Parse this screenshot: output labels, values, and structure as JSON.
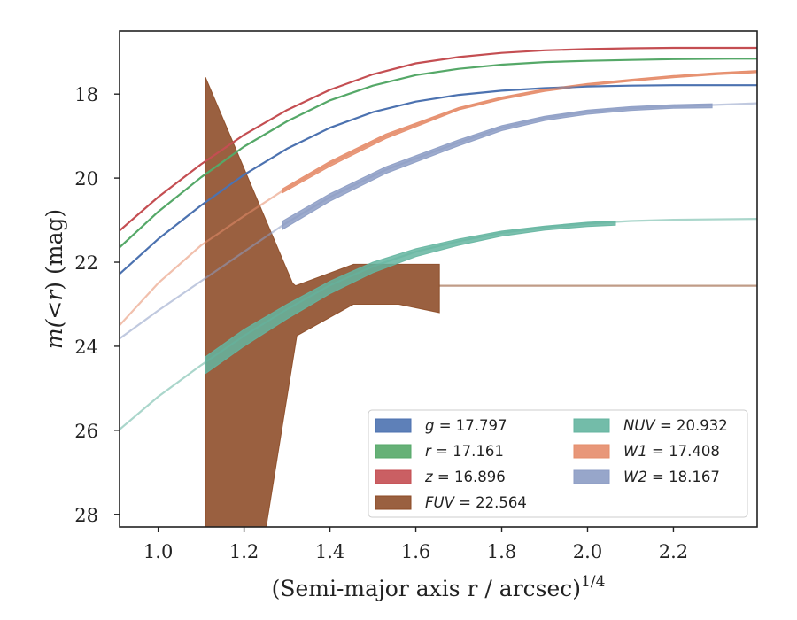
{
  "chart_data": {
    "type": "line",
    "xlabel": "(Semi-major axis r / arcsec)",
    "xlabel_sup": "1/4",
    "ylabel_parts": [
      "m(",
      "<",
      "r",
      ") (mag)"
    ],
    "xlim": [
      0.91,
      2.395
    ],
    "ylim": [
      28.3,
      16.5
    ],
    "y_inverted": true,
    "xticks": [
      1.0,
      1.2,
      1.4,
      1.6,
      1.8,
      2.0,
      2.2
    ],
    "xtick_labels": [
      "1.0",
      "1.2",
      "1.4",
      "1.6",
      "1.8",
      "2.0",
      "2.2"
    ],
    "yticks": [
      18,
      20,
      22,
      24,
      26,
      28
    ],
    "ytick_labels": [
      "18",
      "20",
      "22",
      "24",
      "26",
      "28"
    ],
    "grid": false,
    "legend_position": "lower-right",
    "series": [
      {
        "name": "g",
        "legend_value": "= 17.797",
        "color": "#4c72b0",
        "line": [
          [
            0.91,
            22.28
          ],
          [
            1.0,
            21.45
          ],
          [
            1.1,
            20.65
          ],
          [
            1.2,
            19.92
          ],
          [
            1.3,
            19.3
          ],
          [
            1.4,
            18.8
          ],
          [
            1.5,
            18.43
          ],
          [
            1.6,
            18.18
          ],
          [
            1.7,
            18.02
          ],
          [
            1.8,
            17.92
          ],
          [
            1.9,
            17.86
          ],
          [
            2.0,
            17.82
          ],
          [
            2.1,
            17.8
          ],
          [
            2.2,
            17.79
          ],
          [
            2.395,
            17.79
          ]
        ]
      },
      {
        "name": "r",
        "legend_value": "= 17.161",
        "color": "#55a868",
        "line": [
          [
            0.91,
            21.65
          ],
          [
            1.0,
            20.8
          ],
          [
            1.1,
            19.98
          ],
          [
            1.2,
            19.25
          ],
          [
            1.3,
            18.65
          ],
          [
            1.4,
            18.15
          ],
          [
            1.5,
            17.8
          ],
          [
            1.6,
            17.55
          ],
          [
            1.7,
            17.4
          ],
          [
            1.8,
            17.3
          ],
          [
            1.9,
            17.24
          ],
          [
            2.0,
            17.21
          ],
          [
            2.1,
            17.19
          ],
          [
            2.2,
            17.17
          ],
          [
            2.33,
            17.16
          ],
          [
            2.395,
            17.16
          ]
        ]
      },
      {
        "name": "z",
        "legend_value": "= 16.896",
        "color": "#c44e52",
        "line": [
          [
            0.91,
            21.25
          ],
          [
            1.0,
            20.45
          ],
          [
            1.1,
            19.67
          ],
          [
            1.2,
            18.97
          ],
          [
            1.3,
            18.38
          ],
          [
            1.4,
            17.9
          ],
          [
            1.5,
            17.53
          ],
          [
            1.6,
            17.27
          ],
          [
            1.7,
            17.12
          ],
          [
            1.8,
            17.02
          ],
          [
            1.9,
            16.96
          ],
          [
            2.0,
            16.93
          ],
          [
            2.1,
            16.91
          ],
          [
            2.2,
            16.9
          ],
          [
            2.395,
            16.9
          ]
        ]
      },
      {
        "name": "FUV",
        "legend_value": "= 22.564",
        "color": "#8c4a25",
        "line": [
          [
            1.655,
            22.56
          ],
          [
            2.395,
            22.56
          ]
        ],
        "band_upper": [
          [
            1.11,
            17.6
          ],
          [
            1.313,
            22.5
          ],
          [
            1.32,
            22.56
          ],
          [
            1.455,
            22.05
          ],
          [
            1.655,
            22.05
          ]
        ],
        "band_lower": [
          [
            1.11,
            28.4
          ],
          [
            1.25,
            28.4
          ],
          [
            1.323,
            23.75
          ],
          [
            1.455,
            23.0
          ],
          [
            1.56,
            23.0
          ],
          [
            1.655,
            23.2
          ]
        ]
      },
      {
        "name": "NUV",
        "legend_value": "= 20.932",
        "color": "#64b5a0",
        "line": [
          [
            0.91,
            25.98
          ],
          [
            1.0,
            25.2
          ],
          [
            1.1,
            24.45
          ],
          [
            1.2,
            23.75
          ],
          [
            1.3,
            23.12
          ],
          [
            1.4,
            22.55
          ],
          [
            1.5,
            22.1
          ],
          [
            1.6,
            21.75
          ],
          [
            1.7,
            21.5
          ],
          [
            1.8,
            21.3
          ],
          [
            1.9,
            21.17
          ],
          [
            2.0,
            21.08
          ],
          [
            2.1,
            21.02
          ],
          [
            2.2,
            20.99
          ],
          [
            2.395,
            20.97
          ]
        ],
        "band_upper": [
          [
            1.11,
            24.25
          ],
          [
            1.2,
            23.6
          ],
          [
            1.3,
            23.0
          ],
          [
            1.4,
            22.45
          ],
          [
            1.5,
            22.0
          ],
          [
            1.6,
            21.68
          ],
          [
            1.7,
            21.45
          ],
          [
            1.8,
            21.26
          ],
          [
            1.9,
            21.14
          ],
          [
            2.0,
            21.05
          ],
          [
            2.065,
            21.02
          ]
        ],
        "band_lower": [
          [
            1.11,
            24.65
          ],
          [
            1.2,
            24.0
          ],
          [
            1.3,
            23.35
          ],
          [
            1.4,
            22.75
          ],
          [
            1.5,
            22.25
          ],
          [
            1.6,
            21.87
          ],
          [
            1.7,
            21.6
          ],
          [
            1.8,
            21.38
          ],
          [
            1.9,
            21.24
          ],
          [
            2.0,
            21.15
          ],
          [
            2.065,
            21.12
          ]
        ]
      },
      {
        "name": "W1",
        "legend_value": "= 17.408",
        "color": "#e58c6a",
        "line": [
          [
            0.91,
            23.5
          ],
          [
            1.0,
            22.5
          ],
          [
            1.1,
            21.6
          ],
          [
            1.2,
            20.9
          ],
          [
            1.29,
            20.3
          ],
          [
            1.4,
            19.65
          ],
          [
            1.53,
            19.0
          ],
          [
            1.7,
            18.35
          ],
          [
            1.8,
            18.1
          ],
          [
            1.9,
            17.9
          ],
          [
            2.0,
            17.77
          ],
          [
            2.1,
            17.67
          ],
          [
            2.2,
            17.58
          ],
          [
            2.3,
            17.51
          ],
          [
            2.395,
            17.46
          ]
        ],
        "band_upper": [
          [
            1.29,
            20.25
          ],
          [
            1.4,
            19.6
          ],
          [
            1.53,
            18.95
          ],
          [
            1.7,
            18.32
          ],
          [
            1.8,
            18.07
          ],
          [
            1.9,
            17.88
          ],
          [
            2.0,
            17.75
          ],
          [
            2.1,
            17.65
          ],
          [
            2.2,
            17.56
          ],
          [
            2.3,
            17.49
          ],
          [
            2.395,
            17.44
          ]
        ],
        "band_lower": [
          [
            1.29,
            20.35
          ],
          [
            1.4,
            19.72
          ],
          [
            1.53,
            19.06
          ],
          [
            1.7,
            18.38
          ],
          [
            1.8,
            18.13
          ],
          [
            1.9,
            17.94
          ],
          [
            2.0,
            17.8
          ],
          [
            2.1,
            17.7
          ],
          [
            2.2,
            17.61
          ],
          [
            2.3,
            17.54
          ],
          [
            2.395,
            17.49
          ]
        ]
      },
      {
        "name": "W2",
        "legend_value": "= 18.167",
        "color": "#8c9cc4",
        "line": [
          [
            0.91,
            23.82
          ],
          [
            1.0,
            23.15
          ],
          [
            1.1,
            22.45
          ],
          [
            1.2,
            21.75
          ],
          [
            1.29,
            21.12
          ],
          [
            1.4,
            20.45
          ],
          [
            1.53,
            19.8
          ],
          [
            1.7,
            19.15
          ],
          [
            1.8,
            18.8
          ],
          [
            1.9,
            18.57
          ],
          [
            2.0,
            18.42
          ],
          [
            2.1,
            18.34
          ],
          [
            2.2,
            18.29
          ],
          [
            2.29,
            18.26
          ],
          [
            2.395,
            18.22
          ]
        ],
        "band_upper": [
          [
            1.29,
            21.02
          ],
          [
            1.4,
            20.37
          ],
          [
            1.53,
            19.73
          ],
          [
            1.7,
            19.09
          ],
          [
            1.8,
            18.75
          ],
          [
            1.9,
            18.53
          ],
          [
            2.0,
            18.38
          ],
          [
            2.1,
            18.3
          ],
          [
            2.2,
            18.25
          ],
          [
            2.29,
            18.23
          ]
        ],
        "band_lower": [
          [
            1.29,
            21.22
          ],
          [
            1.4,
            20.55
          ],
          [
            1.53,
            19.89
          ],
          [
            1.7,
            19.23
          ],
          [
            1.8,
            18.87
          ],
          [
            1.9,
            18.63
          ],
          [
            2.0,
            18.48
          ],
          [
            2.1,
            18.39
          ],
          [
            2.2,
            18.34
          ],
          [
            2.29,
            18.33
          ]
        ]
      }
    ],
    "legend_order": [
      [
        "g",
        "r",
        "z",
        "FUV"
      ],
      [
        "NUV",
        "W1",
        "W2"
      ]
    ]
  }
}
